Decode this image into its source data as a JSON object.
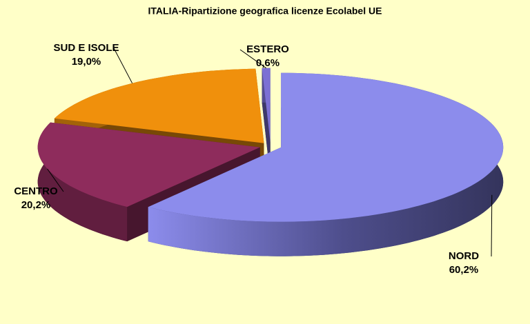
{
  "chart_data": {
    "type": "pie3d",
    "title": "ITALIA-Ripartizione  geografica  licenze  Ecolabel  UE",
    "categories": [
      "NORD",
      "CENTRO",
      "SUD E ISOLE",
      "ESTERO"
    ],
    "values": [
      60.2,
      20.2,
      19.0,
      0.6
    ],
    "value_labels": [
      "60,2%",
      "20,2%",
      "19,0%",
      "0,6%"
    ],
    "colors": [
      "#8c8cec",
      "#8e2c5c",
      "#f0900c",
      "#7c70d4"
    ]
  }
}
